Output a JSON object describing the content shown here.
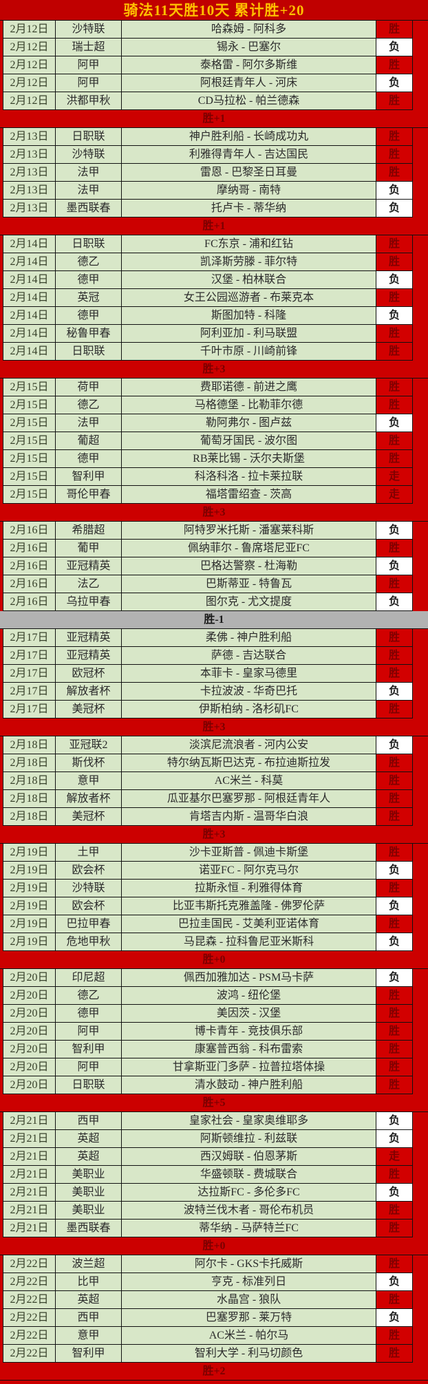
{
  "title": "骑法11天胜10天  累计胜+20",
  "legend": {
    "win": "胜",
    "loss": "负",
    "push": "走"
  },
  "colors": {
    "red": "#cc0000",
    "result_red": "#d20000",
    "cell_green": "#d8e7c8",
    "gray_separator": "#b2b2b2",
    "title_gold": "#ffc000",
    "dark_red_text": "#7f0000"
  },
  "sections": [
    {
      "rows": [
        {
          "date": "2月12日",
          "league": "沙特联",
          "match": "哈森姆 - 阿科多",
          "result": "胜"
        },
        {
          "date": "2月12日",
          "league": "瑞士超",
          "match": "锡永 - 巴塞尔",
          "result": "负"
        },
        {
          "date": "2月12日",
          "league": "阿甲",
          "match": "泰格雷 - 阿尔多斯维",
          "result": "胜"
        },
        {
          "date": "2月12日",
          "league": "阿甲",
          "match": "阿根廷青年人 - 河床",
          "result": "负"
        },
        {
          "date": "2月12日",
          "league": "洪都甲秋",
          "match": "CD马拉松 - 帕兰德森",
          "result": "胜"
        }
      ],
      "summary": {
        "label": "胜+1",
        "theme": "red"
      }
    },
    {
      "rows": [
        {
          "date": "2月13日",
          "league": "日职联",
          "match": "神户胜利船 - 长崎成功丸",
          "result": "胜"
        },
        {
          "date": "2月13日",
          "league": "沙特联",
          "match": "利雅得青年人 - 吉达国民",
          "result": "胜"
        },
        {
          "date": "2月13日",
          "league": "法甲",
          "match": "雷恩 - 巴黎圣日耳曼",
          "result": "胜"
        },
        {
          "date": "2月13日",
          "league": "法甲",
          "match": "摩纳哥 - 南特",
          "result": "负"
        },
        {
          "date": "2月13日",
          "league": "墨西联春",
          "match": "托卢卡 - 蒂华纳",
          "result": "负"
        }
      ],
      "summary": {
        "label": "胜+1",
        "theme": "red"
      }
    },
    {
      "rows": [
        {
          "date": "2月14日",
          "league": "日职联",
          "match": "FC东京 - 浦和红钻",
          "result": "胜"
        },
        {
          "date": "2月14日",
          "league": "德乙",
          "match": "凯泽斯劳滕 - 菲尔特",
          "result": "胜"
        },
        {
          "date": "2月14日",
          "league": "德甲",
          "match": "汉堡 - 柏林联合",
          "result": "负"
        },
        {
          "date": "2月14日",
          "league": "英冠",
          "match": "女王公园巡游者 - 布莱克本",
          "result": "胜"
        },
        {
          "date": "2月14日",
          "league": "德甲",
          "match": "斯图加特 - 科隆",
          "result": "负"
        },
        {
          "date": "2月14日",
          "league": "秘鲁甲春",
          "match": "阿利亚加 - 利马联盟",
          "result": "胜"
        },
        {
          "date": "2月14日",
          "league": "日职联",
          "match": "千叶市原 - 川崎前锋",
          "result": "胜"
        }
      ],
      "summary": {
        "label": "胜+3",
        "theme": "red"
      }
    },
    {
      "rows": [
        {
          "date": "2月15日",
          "league": "荷甲",
          "match": "费耶诺德 - 前进之鹰",
          "result": "胜"
        },
        {
          "date": "2月15日",
          "league": "德乙",
          "match": "马格德堡 - 比勒菲尔德",
          "result": "胜"
        },
        {
          "date": "2月15日",
          "league": "法甲",
          "match": "勒阿弗尔 - 图卢兹",
          "result": "负"
        },
        {
          "date": "2月15日",
          "league": "葡超",
          "match": "葡萄牙国民 - 波尔图",
          "result": "胜"
        },
        {
          "date": "2月15日",
          "league": "德甲",
          "match": "RB莱比锡 - 沃尔夫斯堡",
          "result": "胜"
        },
        {
          "date": "2月15日",
          "league": "智利甲",
          "match": "科洛科洛 - 拉卡莱拉联",
          "result": "走"
        },
        {
          "date": "2月15日",
          "league": "哥伦甲春",
          "match": "福塔雷绍查 - 茨高",
          "result": "走"
        }
      ],
      "summary": {
        "label": "胜+3",
        "theme": "red"
      }
    },
    {
      "rows": [
        {
          "date": "2月16日",
          "league": "希腊超",
          "match": "阿特罗米托斯 - 潘塞莱科斯",
          "result": "负"
        },
        {
          "date": "2月16日",
          "league": "葡甲",
          "match": "佩纳菲尔 - 鲁席塔尼亚FC",
          "result": "胜"
        },
        {
          "date": "2月16日",
          "league": "亚冠精英",
          "match": "巴格达警察 - 杜海勒",
          "result": "负"
        },
        {
          "date": "2月16日",
          "league": "法乙",
          "match": "巴斯蒂亚 - 特鲁瓦",
          "result": "胜"
        },
        {
          "date": "2月16日",
          "league": "乌拉甲春",
          "match": "图尔克 - 尤文提度",
          "result": "负"
        }
      ],
      "summary": {
        "label": "胜-1",
        "theme": "gray"
      }
    },
    {
      "rows": [
        {
          "date": "2月17日",
          "league": "亚冠精英",
          "match": "柔佛 - 神户胜利船",
          "result": "胜"
        },
        {
          "date": "2月17日",
          "league": "亚冠精英",
          "match": "萨德 - 吉达联合",
          "result": "胜"
        },
        {
          "date": "2月17日",
          "league": "欧冠杯",
          "match": "本菲卡 - 皇家马德里",
          "result": "胜"
        },
        {
          "date": "2月17日",
          "league": "解放者杯",
          "match": "卡拉波波 - 华奇巴托",
          "result": "负"
        },
        {
          "date": "2月17日",
          "league": "美冠杯",
          "match": "伊斯柏纳 - 洛杉矶FC",
          "result": "胜"
        }
      ],
      "summary": {
        "label": "胜+3",
        "theme": "red"
      }
    },
    {
      "rows": [
        {
          "date": "2月18日",
          "league": "亚冠联2",
          "match": "淡滨尼流浪者 - 河内公安",
          "result": "负"
        },
        {
          "date": "2月18日",
          "league": "斯伐杯",
          "match": "特尔纳瓦斯巴达克 - 布拉迪斯拉发",
          "result": "胜"
        },
        {
          "date": "2月18日",
          "league": "意甲",
          "match": "AC米兰 - 科莫",
          "result": "胜"
        },
        {
          "date": "2月18日",
          "league": "解放者杯",
          "match": "瓜亚基尔巴塞罗那 - 阿根廷青年人",
          "result": "胜"
        },
        {
          "date": "2月18日",
          "league": "美冠杯",
          "match": "肯塔吉内斯 - 温哥华白浪",
          "result": "胜"
        }
      ],
      "summary": {
        "label": "胜+3",
        "theme": "red"
      }
    },
    {
      "rows": [
        {
          "date": "2月19日",
          "league": "土甲",
          "match": "沙卡亚斯普 - 佩迪卡斯堡",
          "result": "胜"
        },
        {
          "date": "2月19日",
          "league": "欧会杯",
          "match": "诺亚FC - 阿尔克马尔",
          "result": "负"
        },
        {
          "date": "2月19日",
          "league": "沙特联",
          "match": "拉斯永恒 - 利雅得体育",
          "result": "胜"
        },
        {
          "date": "2月19日",
          "league": "欧会杯",
          "match": "比亚韦斯托克雅盖隆 - 佛罗伦萨",
          "result": "负"
        },
        {
          "date": "2月19日",
          "league": "巴拉甲春",
          "match": "巴拉圭国民 - 艾美利亚诺体育",
          "result": "胜"
        },
        {
          "date": "2月19日",
          "league": "危地甲秋",
          "match": "马昆森 - 拉科鲁尼亚米斯科",
          "result": "负"
        }
      ],
      "summary": {
        "label": "胜+0",
        "theme": "red"
      }
    },
    {
      "rows": [
        {
          "date": "2月20日",
          "league": "印尼超",
          "match": "佩西加雅加达 - PSM马卡萨",
          "result": "负"
        },
        {
          "date": "2月20日",
          "league": "德乙",
          "match": "波鸿 - 纽伦堡",
          "result": "胜"
        },
        {
          "date": "2月20日",
          "league": "德甲",
          "match": "美因茨 - 汉堡",
          "result": "胜"
        },
        {
          "date": "2月20日",
          "league": "阿甲",
          "match": "博卡青年 - 竞技俱乐部",
          "result": "胜"
        },
        {
          "date": "2月20日",
          "league": "智利甲",
          "match": "康塞普西翁 - 科布雷索",
          "result": "胜"
        },
        {
          "date": "2月20日",
          "league": "阿甲",
          "match": "甘拿斯亚门多萨 - 拉普拉塔体操",
          "result": "胜"
        },
        {
          "date": "2月20日",
          "league": "日职联",
          "match": "清水鼓动 - 神户胜利船",
          "result": "胜"
        }
      ],
      "summary": {
        "label": "胜+5",
        "theme": "red"
      }
    },
    {
      "rows": [
        {
          "date": "2月21日",
          "league": "西甲",
          "match": "皇家社会 - 皇家奥维耶多",
          "result": "负"
        },
        {
          "date": "2月21日",
          "league": "英超",
          "match": "阿斯顿维拉 - 利兹联",
          "result": "负"
        },
        {
          "date": "2月21日",
          "league": "英超",
          "match": "西汉姆联 - 伯恩茅斯",
          "result": "走"
        },
        {
          "date": "2月21日",
          "league": "美职业",
          "match": "华盛顿联 - 费城联合",
          "result": "胜"
        },
        {
          "date": "2月21日",
          "league": "美职业",
          "match": "达拉斯FC - 多伦多FC",
          "result": "负"
        },
        {
          "date": "2月21日",
          "league": "美职业",
          "match": "波特兰伐木者 - 哥伦布机员",
          "result": "胜"
        },
        {
          "date": "2月21日",
          "league": "墨西联春",
          "match": "蒂华纳 - 马萨特兰FC",
          "result": "胜"
        }
      ],
      "summary": {
        "label": "胜+0",
        "theme": "red"
      }
    },
    {
      "rows": [
        {
          "date": "2月22日",
          "league": "波兰超",
          "match": "阿尔卡 - GKS卡托威斯",
          "result": "胜"
        },
        {
          "date": "2月22日",
          "league": "比甲",
          "match": "亨克 - 标准列日",
          "result": "负"
        },
        {
          "date": "2月22日",
          "league": "英超",
          "match": "水晶宫 - 狼队",
          "result": "胜"
        },
        {
          "date": "2月22日",
          "league": "西甲",
          "match": "巴塞罗那 - 莱万特",
          "result": "负"
        },
        {
          "date": "2月22日",
          "league": "意甲",
          "match": "AC米兰 - 帕尔马",
          "result": "胜"
        },
        {
          "date": "2月22日",
          "league": "智利甲",
          "match": "智利大学 - 利马切颜色",
          "result": "胜"
        }
      ],
      "summary": {
        "label": "胜+2",
        "theme": "red"
      }
    }
  ]
}
